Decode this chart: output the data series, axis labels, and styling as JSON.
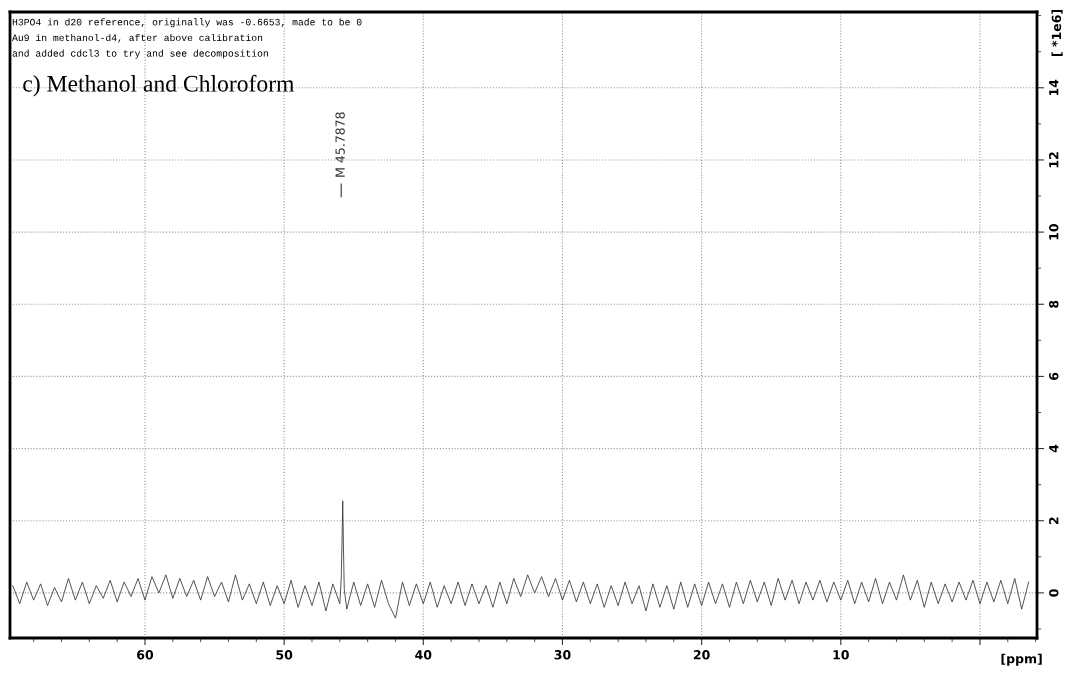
{
  "chart_data": {
    "type": "line",
    "title": "c) Methanol and Chloroform",
    "xlabel": "[ppm]",
    "ylabel": "[ *1e6]",
    "annotations": [
      "H3PO4 in d20 reference, originally was -0.6653, made to be 0",
      "Au9 in methanol-d4, after above calibration",
      "and added cdcl3 to try and see decomposition",
      "M 45.7878"
    ],
    "xlim": [
      69.7,
      -4.1
    ],
    "ylim": [
      -1.25,
      16.1
    ],
    "xticks": [
      60,
      50,
      40,
      30,
      20,
      10,
      {
        "value": 0,
        "label": null
      }
    ],
    "yticks": [
      0,
      2,
      4,
      6,
      8,
      10,
      12,
      14
    ],
    "grid": true,
    "line_style": "solid",
    "marker": "none",
    "series": [
      {
        "color": "#333333",
        "x": [
          69.5,
          69,
          68.5,
          68,
          67.5,
          67,
          66.5,
          66,
          65.5,
          65,
          64.5,
          64,
          63.5,
          63,
          62.5,
          62,
          61.5,
          61,
          60.5,
          60,
          59.5,
          59,
          58.5,
          58,
          57.5,
          57,
          56.5,
          56,
          55.5,
          55,
          54.5,
          54,
          53.5,
          53,
          52.5,
          52,
          51.5,
          51,
          50.5,
          50,
          49.5,
          49,
          48.5,
          48,
          47.5,
          47,
          46.5,
          46,
          45.9,
          45.83,
          45.79,
          45.74,
          45.68,
          45.5,
          45,
          44.5,
          44,
          43.5,
          43,
          42.5,
          42,
          41.5,
          41,
          40.5,
          40,
          39.5,
          39,
          38.5,
          38,
          37.5,
          37,
          36.5,
          36,
          35.5,
          35,
          34.5,
          34,
          33.5,
          33,
          32.5,
          32,
          31.5,
          31,
          30.5,
          30,
          29.5,
          29,
          28.5,
          28,
          27.5,
          27,
          26.5,
          26,
          25.5,
          25,
          24.5,
          24,
          23.5,
          23,
          22.5,
          22,
          21.5,
          21,
          20.5,
          20,
          19.5,
          19,
          18.5,
          18,
          17.5,
          17,
          16.5,
          16,
          15.5,
          15,
          14.5,
          14,
          13.5,
          13,
          12.5,
          12,
          11.5,
          11,
          10.5,
          10,
          9.5,
          9,
          8.5,
          8,
          7.5,
          7,
          6.5,
          6,
          5.5,
          5,
          4.5,
          4,
          3.5,
          3,
          2.5,
          2,
          1.5,
          1,
          0.5,
          0,
          -0.5,
          -1,
          -1.5,
          -2,
          -2.5,
          -3,
          -3.5
        ],
        "values": [
          0.2,
          -0.3,
          0.3,
          -0.2,
          0.25,
          -0.35,
          0.15,
          -0.25,
          0.4,
          -0.2,
          0.3,
          -0.3,
          0.2,
          -0.15,
          0.35,
          -0.25,
          0.3,
          -0.1,
          0.4,
          -0.2,
          0.45,
          0.0,
          0.5,
          -0.15,
          0.4,
          -0.1,
          0.35,
          -0.2,
          0.45,
          -0.1,
          0.3,
          -0.25,
          0.5,
          -0.2,
          0.25,
          -0.3,
          0.3,
          -0.35,
          0.2,
          -0.3,
          0.35,
          -0.4,
          0.2,
          -0.35,
          0.3,
          -0.5,
          0.25,
          -0.3,
          0.4,
          1.6,
          2.55,
          1.3,
          0.1,
          -0.45,
          0.3,
          -0.35,
          0.25,
          -0.4,
          0.35,
          -0.3,
          -0.7,
          0.3,
          -0.35,
          0.25,
          -0.3,
          0.3,
          -0.4,
          0.2,
          -0.3,
          0.3,
          -0.35,
          0.25,
          -0.3,
          0.2,
          -0.4,
          0.3,
          -0.3,
          0.4,
          -0.1,
          0.5,
          0.0,
          0.45,
          -0.1,
          0.4,
          -0.2,
          0.35,
          -0.25,
          0.3,
          -0.3,
          0.25,
          -0.4,
          0.2,
          -0.35,
          0.3,
          -0.3,
          0.2,
          -0.5,
          0.25,
          -0.4,
          0.2,
          -0.45,
          0.3,
          -0.4,
          0.25,
          -0.35,
          0.3,
          -0.3,
          0.25,
          -0.4,
          0.3,
          -0.3,
          0.35,
          -0.25,
          0.3,
          -0.35,
          0.4,
          -0.2,
          0.35,
          -0.3,
          0.3,
          -0.2,
          0.35,
          -0.25,
          0.3,
          -0.2,
          0.35,
          -0.3,
          0.3,
          -0.25,
          0.4,
          -0.3,
          0.3,
          -0.2,
          0.5,
          -0.2,
          0.35,
          -0.4,
          0.3,
          -0.3,
          0.25,
          -0.25,
          0.3,
          -0.2,
          0.35,
          -0.3,
          0.3,
          -0.25,
          0.35,
          -0.3,
          0.4,
          -0.45,
          0.3
        ]
      }
    ]
  }
}
